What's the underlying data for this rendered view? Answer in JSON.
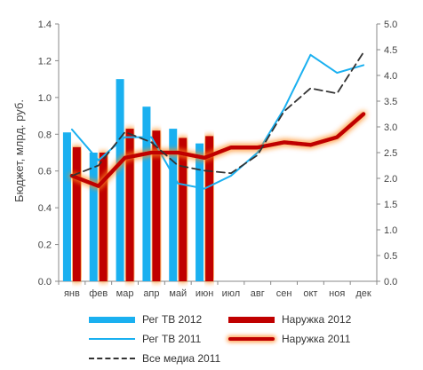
{
  "chart_data": {
    "type": "bar+line",
    "categories": [
      "янв",
      "фев",
      "мар",
      "апр",
      "май",
      "июн",
      "июл",
      "авг",
      "сен",
      "окт",
      "ноя",
      "дек"
    ],
    "ylabel": "Бюджет, млрд. руб.",
    "ylim": [
      0,
      1.4
    ],
    "y_ticks": [
      "0.0",
      "0.2",
      "0.4",
      "0.6",
      "0.8",
      "1.0",
      "1.2",
      "1.4"
    ],
    "y2lim": [
      0,
      5
    ],
    "y2_ticks": [
      "0.0",
      "0.5",
      "1.0",
      "1.5",
      "2.0",
      "2.5",
      "3.0",
      "3.5",
      "4.0",
      "4.5",
      "5.0"
    ],
    "grid": false,
    "legend_position": "bottom",
    "bar_series": [
      {
        "name": "Рег ТВ 2012",
        "color": "#1ab0f0",
        "axis": "left",
        "values": [
          0.81,
          0.7,
          1.1,
          0.95,
          0.83,
          0.75,
          null,
          null,
          null,
          null,
          null,
          null
        ]
      },
      {
        "name": "Наружка 2012",
        "color": "#c00000",
        "axis": "left",
        "values": [
          0.73,
          0.7,
          0.83,
          0.82,
          0.78,
          0.79,
          null,
          null,
          null,
          null,
          null,
          null
        ]
      }
    ],
    "line_series": [
      {
        "name": "Рег ТВ 2011",
        "color": "#1ab0f0",
        "axis": "right",
        "style": "thin",
        "values": [
          2.95,
          2.35,
          2.8,
          2.8,
          1.9,
          1.8,
          2.05,
          2.5,
          3.35,
          4.4,
          4.05,
          4.2
        ]
      },
      {
        "name": "Наружка 2011",
        "color": "#c00000",
        "axis": "right",
        "style": "thick-glow",
        "values": [
          2.05,
          1.85,
          2.4,
          2.5,
          2.5,
          2.4,
          2.6,
          2.6,
          2.7,
          2.65,
          2.8,
          3.25
        ]
      },
      {
        "name": "Все медиа 2011",
        "color": "#333333",
        "axis": "right",
        "style": "dashed",
        "values": [
          2.05,
          2.25,
          2.9,
          2.7,
          2.25,
          2.15,
          2.1,
          2.45,
          3.3,
          3.75,
          3.65,
          4.45
        ]
      }
    ]
  },
  "legend": {
    "items": [
      {
        "label": "Рег ТВ 2012"
      },
      {
        "label": "Наружка 2012"
      },
      {
        "label": "Рег ТВ 2011"
      },
      {
        "label": "Наружка 2011"
      },
      {
        "label": "Все медиа 2011"
      }
    ]
  }
}
